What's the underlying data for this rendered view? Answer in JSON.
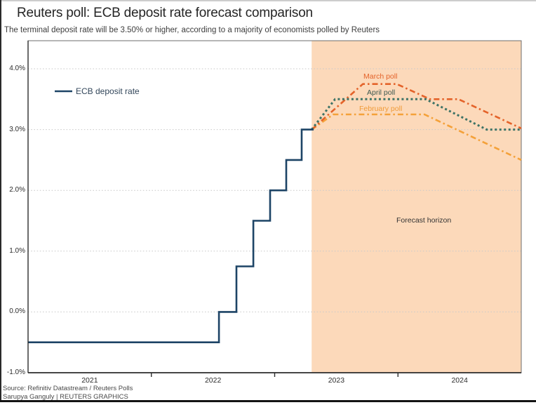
{
  "header": {
    "brand": "REUTERS GRAPHICS"
  },
  "chart_data": {
    "type": "line",
    "title": "Reuters poll: ECB deposit rate forecast comparison",
    "subtitle": "The terminal deposit rate will be 3.50% or higher, according to a majority of economists polled by Reuters",
    "xlabel": "",
    "ylabel": "",
    "xlim": [
      2021.0,
      2025.0
    ],
    "ylim": [
      -1.0,
      4.462
    ],
    "grid": "horizontal-dotted",
    "legend_position": "top-left-inside",
    "x_ticks": [
      {
        "label": "2021",
        "x": 2021.5
      },
      {
        "label": "2022",
        "x": 2022.5
      },
      {
        "label": "2023",
        "x": 2023.5
      },
      {
        "label": "2024",
        "x": 2024.5
      }
    ],
    "x_boundary_ticks": [
      2022,
      2023,
      2024
    ],
    "y_ticks": [
      {
        "label": "4.0%",
        "value": 4.0,
        "gridline": true
      },
      {
        "label": "3.0%",
        "value": 3.0,
        "gridline": true
      },
      {
        "label": "2.0%",
        "value": 2.0,
        "gridline": true
      },
      {
        "label": "1.0%",
        "value": 1.0,
        "gridline": true
      },
      {
        "label": "0.0%",
        "value": 0.0,
        "gridline": true
      },
      {
        "label": "-1.0%",
        "value": -1.0,
        "gridline": false
      }
    ],
    "forecast_region": {
      "label": "Forecast horizon",
      "start_x": 2023.3,
      "end_x": 2025.0,
      "color": "#fcd9ba"
    },
    "series": [
      {
        "name": "ECB deposit rate",
        "color": "#1d4466",
        "style": "solid",
        "in_legend": true,
        "points": [
          [
            2021.0,
            -0.5
          ],
          [
            2022.548,
            -0.5
          ],
          [
            2022.548,
            0.0
          ],
          [
            2022.69,
            0.0
          ],
          [
            2022.69,
            0.75
          ],
          [
            2022.827,
            0.75
          ],
          [
            2022.827,
            1.5
          ],
          [
            2022.963,
            1.5
          ],
          [
            2022.963,
            2.0
          ],
          [
            2023.094,
            2.0
          ],
          [
            2023.094,
            2.5
          ],
          [
            2023.219,
            2.5
          ],
          [
            2023.219,
            3.0
          ],
          [
            2023.316,
            3.0
          ]
        ]
      },
      {
        "name": "February poll",
        "color": "#f4a139",
        "label_color": "#f09b38",
        "style": "dash-dot",
        "in_legend": false,
        "points": [
          [
            2023.3,
            3.0
          ],
          [
            2023.475,
            3.25
          ],
          [
            2024.215,
            3.25
          ],
          [
            2025.0,
            2.5
          ]
        ]
      },
      {
        "name": "March poll",
        "color": "#e4632a",
        "label_color": "#e4632a",
        "style": "dash-dot",
        "in_legend": false,
        "points": [
          [
            2023.3,
            3.0
          ],
          [
            2023.715,
            3.75
          ],
          [
            2023.99,
            3.75
          ],
          [
            2024.26,
            3.5
          ],
          [
            2024.49,
            3.5
          ],
          [
            2025.0,
            3.02
          ]
        ]
      },
      {
        "name": "April poll",
        "color": "#3e7366",
        "label_color": "#3b5850",
        "style": "dotted",
        "in_legend": false,
        "points": [
          [
            2023.3,
            3.0
          ],
          [
            2023.49,
            3.5
          ],
          [
            2024.225,
            3.5
          ],
          [
            2024.72,
            3.0
          ],
          [
            2025.0,
            3.0
          ]
        ]
      }
    ]
  },
  "footer": {
    "source": "Source: Refinitiv Datastream / Reuters Polls",
    "credit": "Sarupya Ganguly | REUTERS GRAPHICS"
  }
}
